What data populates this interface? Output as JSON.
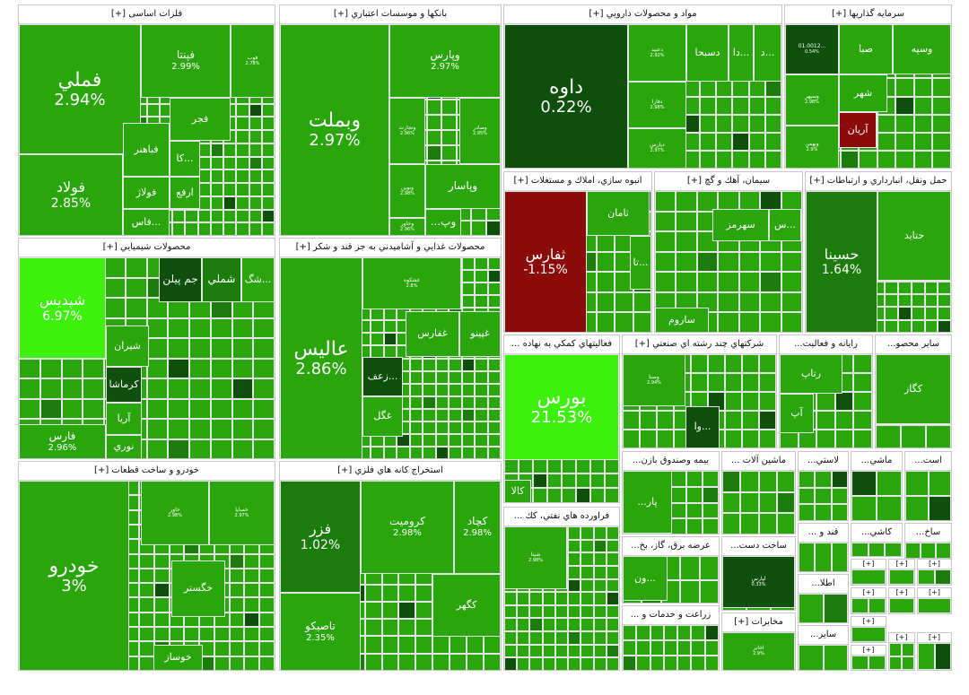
{
  "page": {
    "title": "Market treemap",
    "expand_marker": "[+]"
  },
  "colors": {
    "up_strong": "#3ef10c",
    "up": "#2aa60c",
    "up_dark": "#1c7c0b",
    "flat": "#0e4f0b",
    "down": "#8b0b0b",
    "neutral": "#34b20f"
  },
  "sectors": [
    {
      "name": "فلزات اساسی [+]",
      "tiles": [
        {
          "symbol": "فملي",
          "change": "2.94%",
          "size": "xl",
          "color": "up"
        },
        {
          "symbol": "فولاد",
          "change": "2.85%",
          "size": "l",
          "color": "up"
        },
        {
          "symbol": "فپنتا",
          "change": "2.99%",
          "size": "m",
          "color": "up"
        },
        {
          "symbol": "فوب",
          "change": "2.78%",
          "size": "xs",
          "color": "up"
        },
        {
          "symbol": "فجر",
          "change": "",
          "size": "s",
          "color": "up"
        },
        {
          "symbol": "فباهنر",
          "change": "",
          "size": "s",
          "color": "up"
        },
        {
          "symbol": "كا...",
          "change": "",
          "size": "s",
          "color": "up"
        },
        {
          "symbol": "فولاژ",
          "change": "",
          "size": "s",
          "color": "up"
        },
        {
          "symbol": "ارفع",
          "change": "",
          "size": "s",
          "color": "up"
        },
        {
          "symbol": "فاس...",
          "change": "",
          "size": "s",
          "color": "up"
        }
      ]
    },
    {
      "name": "بانكها و موسسات اعتباري [+]",
      "tiles": [
        {
          "symbol": "وبملت",
          "change": "2.97%",
          "size": "xl",
          "color": "up"
        },
        {
          "symbol": "وپارس",
          "change": "2.97%",
          "size": "m",
          "color": "up"
        },
        {
          "symbol": "وتجارت",
          "change": "2.96%",
          "size": "xs",
          "color": "up"
        },
        {
          "symbol": "وصادر",
          "change": "2.95%",
          "size": "xs",
          "color": "up"
        },
        {
          "symbol": "وپاسار",
          "change": "",
          "size": "m",
          "color": "up"
        },
        {
          "symbol": "ونوين",
          "change": "2.98%",
          "size": "xs",
          "color": "up"
        },
        {
          "symbol": "وخاور",
          "change": "2.96%",
          "size": "xs",
          "color": "up"
        },
        {
          "symbol": "...وپ",
          "change": "",
          "size": "m",
          "color": "up"
        }
      ]
    },
    {
      "name": "مواد و محصولات دارويي [+]",
      "tiles": [
        {
          "symbol": "داوه",
          "change": "0.22%",
          "size": "xl",
          "color": "flat"
        },
        {
          "symbol": "دسبحا",
          "change": "",
          "size": "s",
          "color": "up"
        },
        {
          "symbol": "دا...",
          "change": "",
          "size": "s",
          "color": "up"
        },
        {
          "symbol": "د...",
          "change": "",
          "size": "s",
          "color": "up"
        },
        {
          "symbol": "دعبيد",
          "change": "2.92%",
          "size": "xs",
          "color": "up"
        },
        {
          "symbol": "دفارا",
          "change": "2.98%",
          "size": "xs",
          "color": "up"
        },
        {
          "symbol": "دپارس",
          "change": "2.97%",
          "size": "xs",
          "color": "up"
        }
      ]
    },
    {
      "name": "سرمايه گذاريها [+]",
      "tiles": [
        {
          "symbol": "01.0012...",
          "change": "0.54%",
          "size": "xs",
          "color": "flat"
        },
        {
          "symbol": "صبا",
          "change": "",
          "size": "s",
          "color": "up"
        },
        {
          "symbol": "وسپه",
          "change": "",
          "size": "s",
          "color": "up"
        },
        {
          "symbol": "شهر",
          "change": "",
          "size": "s",
          "color": "up"
        },
        {
          "symbol": "وسپهر",
          "change": "2.98%",
          "size": "xs",
          "color": "up"
        },
        {
          "symbol": "آريان",
          "change": "",
          "size": "s",
          "color": "down"
        },
        {
          "symbol": "وبهمن",
          "change": "2.9%",
          "size": "xs",
          "color": "up"
        }
      ]
    },
    {
      "name": "محصولات شيميايي [+]",
      "tiles": [
        {
          "symbol": "شپديس",
          "change": "6.97%",
          "size": "l",
          "color": "up_strong"
        },
        {
          "symbol": "پارسان",
          "change": "3%",
          "size": "m",
          "color": "up"
        },
        {
          "symbol": "فارس",
          "change": "2.96%",
          "size": "m",
          "color": "up"
        },
        {
          "symbol": "جم پيلن",
          "change": "",
          "size": "m",
          "color": "flat"
        },
        {
          "symbol": "شملي",
          "change": "",
          "size": "m",
          "color": "up_dark"
        },
        {
          "symbol": "شگ...",
          "change": "",
          "size": "s",
          "color": "up"
        },
        {
          "symbol": "شيران",
          "change": "",
          "size": "s",
          "color": "up"
        },
        {
          "symbol": "كرماشا",
          "change": "",
          "size": "s",
          "color": "flat"
        },
        {
          "symbol": "آريا",
          "change": "",
          "size": "s",
          "color": "up"
        },
        {
          "symbol": "نوري",
          "change": "",
          "size": "s",
          "color": "up"
        }
      ]
    },
    {
      "name": "محصولات غذايي و آشاميدني به جز قند و شكر [+]",
      "tiles": [
        {
          "symbol": "عاليس",
          "change": "2.86%",
          "size": "xl",
          "color": "up"
        },
        {
          "symbol": "غشكوه",
          "change": "2.8%",
          "size": "xs",
          "color": "up"
        },
        {
          "symbol": "غپينو",
          "change": "",
          "size": "s",
          "color": "up"
        },
        {
          "symbol": "غفارس",
          "change": "",
          "size": "s",
          "color": "up"
        },
        {
          "symbol": "زعف...",
          "change": "",
          "size": "s",
          "color": "flat"
        },
        {
          "symbol": "غگل",
          "change": "",
          "size": "s",
          "color": "up"
        }
      ]
    },
    {
      "name": "خودرو و ساخت قطعات [+]",
      "tiles": [
        {
          "symbol": "خودرو",
          "change": "3%",
          "size": "xl",
          "color": "up"
        },
        {
          "symbol": "خاور",
          "change": "2.98%",
          "size": "xs",
          "color": "up"
        },
        {
          "symbol": "خساپا",
          "change": "2.97%",
          "size": "xs",
          "color": "up"
        },
        {
          "symbol": "خگستر",
          "change": "",
          "size": "s",
          "color": "up"
        },
        {
          "symbol": "خوساز",
          "change": "",
          "size": "s",
          "color": "up"
        }
      ]
    },
    {
      "name": "استخراج كانه هاي فلزي [+]",
      "tiles": [
        {
          "symbol": "فزر",
          "change": "1.02%",
          "size": "l",
          "color": "up_dark"
        },
        {
          "symbol": "كروميت",
          "change": "2.98%",
          "size": "m",
          "color": "up"
        },
        {
          "symbol": "كچاد",
          "change": "2.98%",
          "size": "m",
          "color": "up"
        },
        {
          "symbol": "تاصيكو",
          "change": "2.35%",
          "size": "m",
          "color": "up"
        },
        {
          "symbol": "كگهر",
          "change": "",
          "size": "s",
          "color": "up"
        }
      ]
    },
    {
      "name": "انبوه سازي، املاك و مستغلات [+]",
      "tiles": [
        {
          "symbol": "ثفارس",
          "change": "-1.15%",
          "size": "l",
          "color": "down"
        },
        {
          "symbol": "ثامان",
          "change": "",
          "size": "s",
          "color": "up"
        },
        {
          "symbol": "تا...",
          "change": "",
          "size": "s",
          "color": "up"
        }
      ]
    },
    {
      "name": "سيمان، آهك و گچ [+]",
      "tiles": [
        {
          "symbol": "سهرمز",
          "change": "",
          "size": "s",
          "color": "up"
        },
        {
          "symbol": "س...",
          "change": "",
          "size": "s",
          "color": "up"
        },
        {
          "symbol": "ساروم",
          "change": "",
          "size": "s",
          "color": "up"
        }
      ]
    },
    {
      "name": "حمل ونقل، انبارداري و ارتباطات [+]",
      "tiles": [
        {
          "symbol": "حسينا",
          "change": "1.64%",
          "size": "l",
          "color": "up_dark"
        },
        {
          "symbol": "حتايد",
          "change": "",
          "size": "s",
          "color": "up"
        }
      ]
    },
    {
      "name": "فعاليتهاي كمكي به نهاده ...",
      "tiles": [
        {
          "symbol": "بورس",
          "change": "21.53%",
          "size": "xl",
          "color": "up_strong"
        },
        {
          "symbol": "كالا",
          "change": "",
          "size": "s",
          "color": "up"
        }
      ]
    },
    {
      "name": "شركتهاي چند رشته اي صنعتي [+]",
      "tiles": [
        {
          "symbol": "وصنا",
          "change": "2.94%",
          "size": "xs",
          "color": "up"
        },
        {
          "symbol": "وا...",
          "change": "",
          "size": "s",
          "color": "flat"
        }
      ]
    },
    {
      "name": "رايانه و فعاليت...",
      "tiles": [
        {
          "symbol": "رتاپ",
          "change": "",
          "size": "s",
          "color": "up"
        },
        {
          "symbol": "آپ",
          "change": "",
          "size": "s",
          "color": "up"
        }
      ]
    },
    {
      "name": "ساير محصو...",
      "tiles": [
        {
          "symbol": "كگاز",
          "change": "",
          "size": "s",
          "color": "up"
        }
      ]
    },
    {
      "name": "فراورده هاي نفتي، كك ...",
      "tiles": [
        {
          "symbol": "شپنا",
          "change": "2.98%",
          "size": "xs",
          "color": "up"
        }
      ]
    },
    {
      "name": "بيمه وصندوق بازن...",
      "tiles": [
        {
          "symbol": "...پار",
          "change": "",
          "size": "s",
          "color": "up"
        }
      ]
    },
    {
      "name": "ماشين آلات ...",
      "tiles": []
    },
    {
      "name": "عرضه برق، گاز، بخ...",
      "tiles": [
        {
          "symbol": "ون...",
          "change": "",
          "size": "s",
          "color": "up"
        }
      ]
    },
    {
      "name": "ساخت دست...",
      "tiles": [
        {
          "symbol": "لپارس",
          "change": "0.33%",
          "size": "xs",
          "color": "flat"
        }
      ]
    },
    {
      "name": "زراعت و خدمات و ...",
      "tiles": []
    },
    {
      "name": "مخابرات [+]",
      "tiles": [
        {
          "symbol": "اخابر",
          "change": "2.9%",
          "size": "xs",
          "color": "up"
        }
      ]
    },
    {
      "name": "لاستي...",
      "tiles": []
    },
    {
      "name": "ماشي...",
      "tiles": []
    },
    {
      "name": "است...",
      "tiles": []
    },
    {
      "name": "ساخ...",
      "tiles": []
    },
    {
      "name": "كاشي...",
      "tiles": []
    },
    {
      "name": "قند و ...",
      "tiles": []
    },
    {
      "name": "اطلا...",
      "tiles": []
    },
    {
      "name": "ساير...",
      "tiles": []
    }
  ]
}
